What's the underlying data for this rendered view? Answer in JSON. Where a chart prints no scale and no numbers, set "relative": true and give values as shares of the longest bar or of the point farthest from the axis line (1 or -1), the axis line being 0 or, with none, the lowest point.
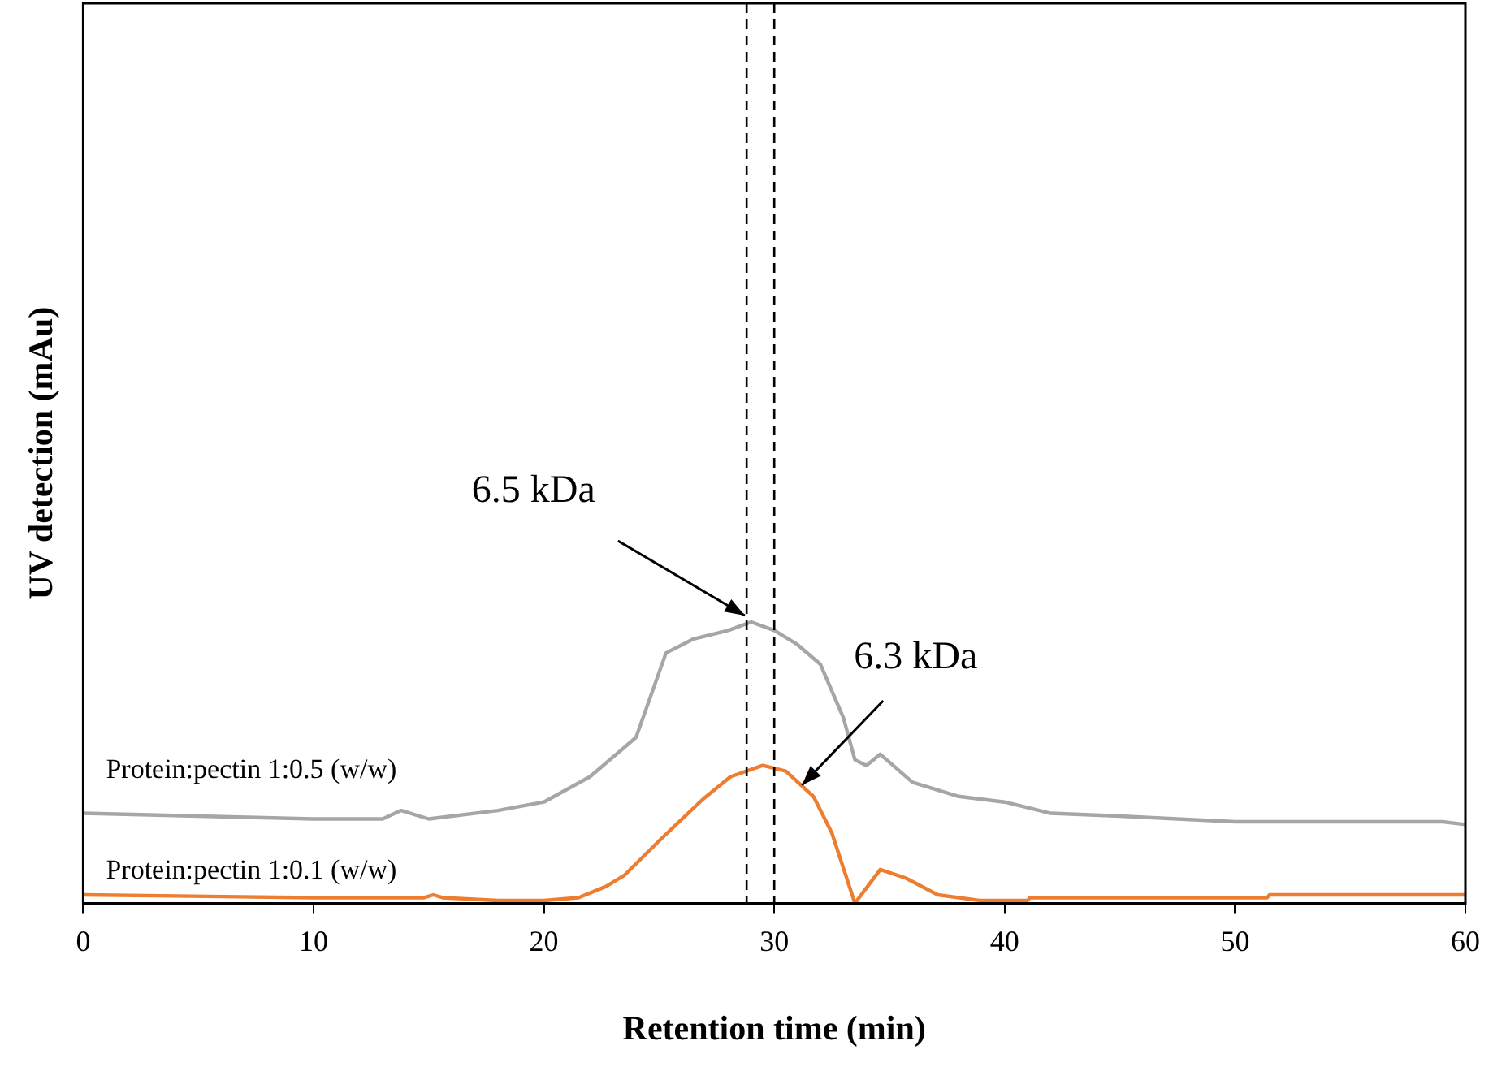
{
  "chart_data": {
    "type": "line",
    "relative": true,
    "xlabel": "Retention time (min)",
    "ylabel": "UV detection (mAu)",
    "xlim": [
      0,
      60
    ],
    "xticks": [
      0,
      10,
      20,
      30,
      40,
      50,
      60
    ],
    "grid": false,
    "legend": false,
    "marker": "none",
    "line_style": "solid",
    "series": [
      {
        "name": "Protein:pectin 1:0.5 (w/w)",
        "color": "#a6a6a6",
        "x": [
          0,
          5,
          10,
          13,
          13.8,
          15,
          18,
          20,
          22,
          24,
          25.3,
          26.5,
          28,
          29,
          30,
          31,
          32,
          33,
          33.5,
          34,
          34.6,
          36,
          38,
          40,
          42,
          45,
          50,
          55,
          59,
          60
        ],
        "values": [
          0.32,
          0.31,
          0.3,
          0.3,
          0.33,
          0.3,
          0.33,
          0.36,
          0.45,
          0.59,
          0.89,
          0.94,
          0.97,
          1,
          0.97,
          0.92,
          0.85,
          0.66,
          0.51,
          0.49,
          0.53,
          0.43,
          0.38,
          0.36,
          0.32,
          0.31,
          0.29,
          0.29,
          0.29,
          0.28
        ]
      },
      {
        "name": "Protein:pectin 1:0.1 (w/w)",
        "color": "#ed7d31",
        "x": [
          0,
          10,
          14.8,
          15.2,
          15.6,
          18,
          20,
          21.5,
          22.7,
          23.5,
          25.1,
          26.9,
          28.1,
          29.5,
          30.5,
          31.7,
          32.5,
          33.1,
          33.5,
          34.6,
          35.7,
          37.1,
          38.9,
          41,
          41.1,
          51.4,
          51.5,
          60
        ],
        "values": [
          0.03,
          0.02,
          0.02,
          0.03,
          0.02,
          0.01,
          0.01,
          0.02,
          0.06,
          0.1,
          0.23,
          0.37,
          0.45,
          0.49,
          0.47,
          0.38,
          0.25,
          0.1,
          0,
          0.12,
          0.09,
          0.03,
          0.01,
          0.01,
          0.02,
          0.02,
          0.03,
          0.03
        ]
      }
    ],
    "ref_lines": [
      {
        "axis": "x",
        "value": 28.8,
        "color": "#000000",
        "line_style": "dashed"
      },
      {
        "axis": "x",
        "value": 30,
        "color": "#000000",
        "line_style": "dashed"
      }
    ],
    "annotations": [
      {
        "text": "6.5 kDa",
        "x": 29,
        "y": 1
      },
      {
        "text": "6.3 kDa",
        "x": 31.2,
        "y": 0.42
      }
    ]
  }
}
